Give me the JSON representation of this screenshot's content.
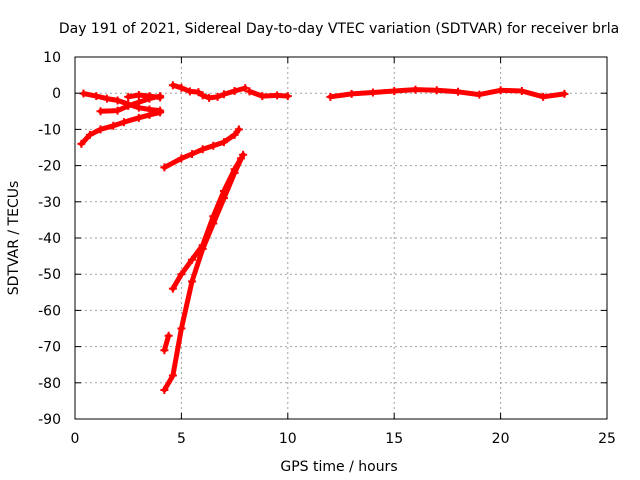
{
  "chart_data": {
    "type": "scatter",
    "title": "Day 191 of 2021, Sidereal Day-to-day VTEC variation (SDTVAR) for receiver brla",
    "xlabel": "GPS time / hours",
    "ylabel": "SDTVAR / TECUs",
    "xlim": [
      0,
      25
    ],
    "ylim": [
      -90,
      10
    ],
    "xticks": [
      0,
      5,
      10,
      15,
      20,
      25
    ],
    "yticks": [
      10,
      0,
      -10,
      -20,
      -30,
      -40,
      -50,
      -60,
      -70,
      -80,
      -90
    ],
    "grid": true,
    "legend": "none",
    "marker_color": "#ff0000",
    "series": [
      {
        "points": [
          [
            0.4,
            -0.1
          ],
          [
            1.0,
            -0.8
          ],
          [
            1.5,
            -1.5
          ],
          [
            2.0,
            -2.0
          ],
          [
            2.5,
            -3.0
          ],
          [
            3.0,
            -4.0
          ],
          [
            3.5,
            -4.5
          ],
          [
            4.0,
            -4.8
          ]
        ]
      },
      {
        "points": [
          [
            1.2,
            -5.0
          ],
          [
            2.0,
            -4.8
          ],
          [
            2.5,
            -3.5
          ],
          [
            3.0,
            -2.5
          ],
          [
            3.5,
            -1.5
          ],
          [
            4.0,
            -0.8
          ]
        ]
      },
      {
        "points": [
          [
            2.5,
            -1.0
          ],
          [
            3.0,
            -0.5
          ],
          [
            3.5,
            -0.8
          ],
          [
            4.0,
            -1.2
          ]
        ]
      },
      {
        "points": [
          [
            0.3,
            -14.0
          ],
          [
            0.7,
            -11.5
          ],
          [
            1.2,
            -10.0
          ],
          [
            1.8,
            -9.0
          ],
          [
            2.3,
            -8.0
          ],
          [
            3.0,
            -6.8
          ],
          [
            3.5,
            -6.0
          ],
          [
            4.0,
            -5.3
          ]
        ]
      },
      {
        "points": [
          [
            4.6,
            2.2
          ],
          [
            5.0,
            1.5
          ],
          [
            5.4,
            0.5
          ],
          [
            5.8,
            0.3
          ],
          [
            6.0,
            -0.6
          ],
          [
            6.3,
            -1.3
          ],
          [
            6.7,
            -1.0
          ],
          [
            7.0,
            -0.3
          ],
          [
            7.5,
            0.6
          ],
          [
            8.0,
            1.4
          ]
        ]
      },
      {
        "points": [
          [
            8.2,
            0.5
          ],
          [
            8.8,
            -0.8
          ],
          [
            9.5,
            -0.6
          ],
          [
            10.0,
            -0.8
          ]
        ]
      },
      {
        "points": [
          [
            12.0,
            -1.0
          ],
          [
            13.0,
            -0.2
          ],
          [
            14.0,
            0.2
          ],
          [
            15.0,
            0.6
          ],
          [
            16.0,
            1.0
          ],
          [
            17.0,
            0.8
          ],
          [
            18.0,
            0.4
          ],
          [
            19.0,
            -0.4
          ],
          [
            20.0,
            0.8
          ],
          [
            21.0,
            0.6
          ],
          [
            22.0,
            -1.0
          ],
          [
            23.0,
            -0.2
          ]
        ]
      },
      {
        "points": [
          [
            4.2,
            -20.5
          ],
          [
            5.0,
            -18.0
          ],
          [
            5.5,
            -16.8
          ],
          [
            6.0,
            -15.5
          ],
          [
            6.5,
            -14.5
          ],
          [
            7.0,
            -13.5
          ],
          [
            7.5,
            -11.5
          ],
          [
            7.7,
            -10.0
          ]
        ]
      },
      {
        "points": [
          [
            4.2,
            -82.0
          ],
          [
            4.6,
            -78.0
          ],
          [
            5.0,
            -65.0
          ],
          [
            5.5,
            -52.0
          ],
          [
            6.0,
            -43.0
          ],
          [
            6.5,
            -36.0
          ],
          [
            7.0,
            -29.0
          ],
          [
            7.5,
            -22.0
          ],
          [
            7.9,
            -17.0
          ]
        ]
      },
      {
        "points": [
          [
            4.6,
            -54.0
          ],
          [
            5.0,
            -50.0
          ],
          [
            5.5,
            -46.0
          ],
          [
            6.0,
            -42.0
          ],
          [
            6.5,
            -34.0
          ],
          [
            7.0,
            -27.0
          ],
          [
            7.5,
            -21.0
          ],
          [
            7.8,
            -18.0
          ]
        ]
      },
      {
        "points": [
          [
            4.2,
            -71.0
          ],
          [
            4.4,
            -67.0
          ]
        ]
      }
    ]
  }
}
